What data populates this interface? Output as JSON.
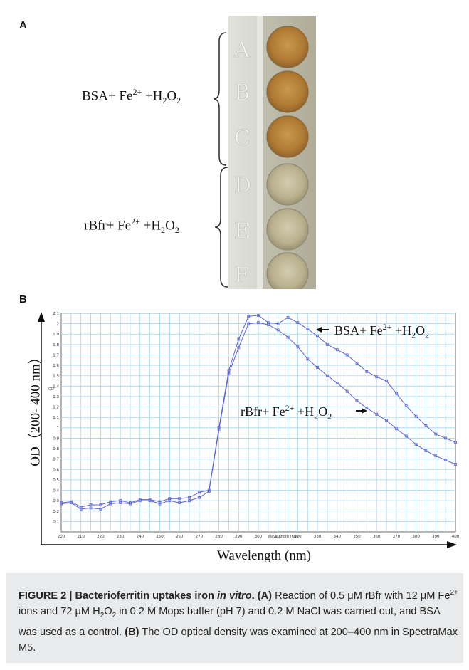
{
  "panels": {
    "a": "A",
    "b": "B"
  },
  "panel_a": {
    "bsa_label": {
      "main": "BSA+ Fe",
      "sup": "2+",
      "mid": " +H",
      "sub1": "2",
      "o": "O",
      "sub2": "2"
    },
    "rbfr_label": {
      "main": "rBfr+ Fe",
      "sup": "2+",
      "mid": " +H",
      "sub1": "2",
      "o": "O",
      "sub2": "2"
    },
    "well_letters": [
      "A",
      "B",
      "C",
      "D",
      "E",
      "F"
    ],
    "colors": {
      "bsa_well": "#b88a40",
      "rbfr_well": "#b9b08d",
      "plate": "#cfcfc8"
    }
  },
  "axis_titles": {
    "y": "OD（200- 400 nm）",
    "x": "Wavelength (nm)",
    "y_small": "OD",
    "x_small": "Wavelength (nm)"
  },
  "annotations": {
    "bsa": {
      "main": "BSA+ Fe",
      "sup": "2+",
      "mid": " +H",
      "sub1": "2",
      "o": "O",
      "sub2": "2"
    },
    "rbfr": {
      "main": "rBfr+ Fe",
      "sup": "2+",
      "mid": " +H",
      "sub1": "2",
      "o": "O",
      "sub2": "2"
    }
  },
  "chart_data": {
    "type": "line",
    "x": [
      200,
      205,
      210,
      215,
      220,
      225,
      230,
      235,
      240,
      245,
      250,
      255,
      260,
      265,
      270,
      275,
      280,
      285,
      290,
      295,
      300,
      305,
      310,
      315,
      320,
      325,
      330,
      335,
      340,
      345,
      350,
      355,
      360,
      365,
      370,
      375,
      380,
      385,
      390,
      395,
      400
    ],
    "series": [
      {
        "name": "BSA+ Fe2+ +H2O2",
        "values": [
          0.28,
          0.29,
          0.24,
          0.26,
          0.26,
          0.29,
          0.3,
          0.28,
          0.31,
          0.31,
          0.29,
          0.32,
          0.32,
          0.33,
          0.38,
          0.4,
          1.0,
          1.55,
          1.85,
          2.07,
          2.08,
          2.01,
          2.0,
          2.06,
          2.01,
          1.95,
          1.88,
          1.8,
          1.75,
          1.7,
          1.62,
          1.54,
          1.49,
          1.45,
          1.33,
          1.21,
          1.11,
          1.02,
          0.94,
          0.9,
          0.86
        ]
      },
      {
        "name": "rBfr+ Fe2+ +H2O2",
        "values": [
          0.27,
          0.28,
          0.22,
          0.23,
          0.22,
          0.27,
          0.28,
          0.27,
          0.3,
          0.3,
          0.27,
          0.3,
          0.28,
          0.3,
          0.33,
          0.39,
          0.98,
          1.52,
          1.77,
          2.0,
          2.01,
          1.99,
          1.94,
          1.87,
          1.78,
          1.66,
          1.58,
          1.5,
          1.43,
          1.35,
          1.26,
          1.19,
          1.13,
          1.07,
          0.99,
          0.92,
          0.84,
          0.78,
          0.73,
          0.69,
          0.65
        ]
      }
    ],
    "xlim": [
      200,
      400
    ],
    "ylim": [
      0,
      2.1
    ],
    "x_ticks": [
      "200",
      "210",
      "220",
      "230",
      "240",
      "250",
      "260",
      "270",
      "280",
      "290",
      "300",
      "310",
      "320",
      "330",
      "340",
      "350",
      "360",
      "370",
      "380",
      "390",
      "400"
    ],
    "y_ticks": [
      "0.1",
      "0.2",
      "0.3",
      "0.4",
      "0.5",
      "0.6",
      "0.7",
      "0.8",
      "0.9",
      "1",
      "1.1",
      "1.2",
      "1.3",
      "1.4",
      "1.5",
      "1.6",
      "1.7",
      "1.8",
      "1.9",
      "2",
      "2.1"
    ],
    "grid": true,
    "line_color": "#5a63d6",
    "grid_color": "#9fd6ee"
  },
  "caption": {
    "fig": "FIGURE 2 | ",
    "title": "Bacterioferritin uptakes iron ",
    "title_ital": "in vitro",
    "title_end": ". ",
    "a_tag": "(A)",
    "a_text": " Reaction of 0.5 μM rBfr with 12 μM Fe",
    "a_sup": "2+",
    "a_text2": " ions and 72 μM H",
    "a_sub1": "2",
    "a_o": "O",
    "a_sub2": "2",
    "a_text3": " in 0.2 M Mops buffer (pH 7) and 0.2 M NaCl was carried out, and BSA was used as a control. ",
    "b_tag": "(B)",
    "b_text": " The OD optical density was examined at 200–400 nm in SpectraMax M5."
  }
}
